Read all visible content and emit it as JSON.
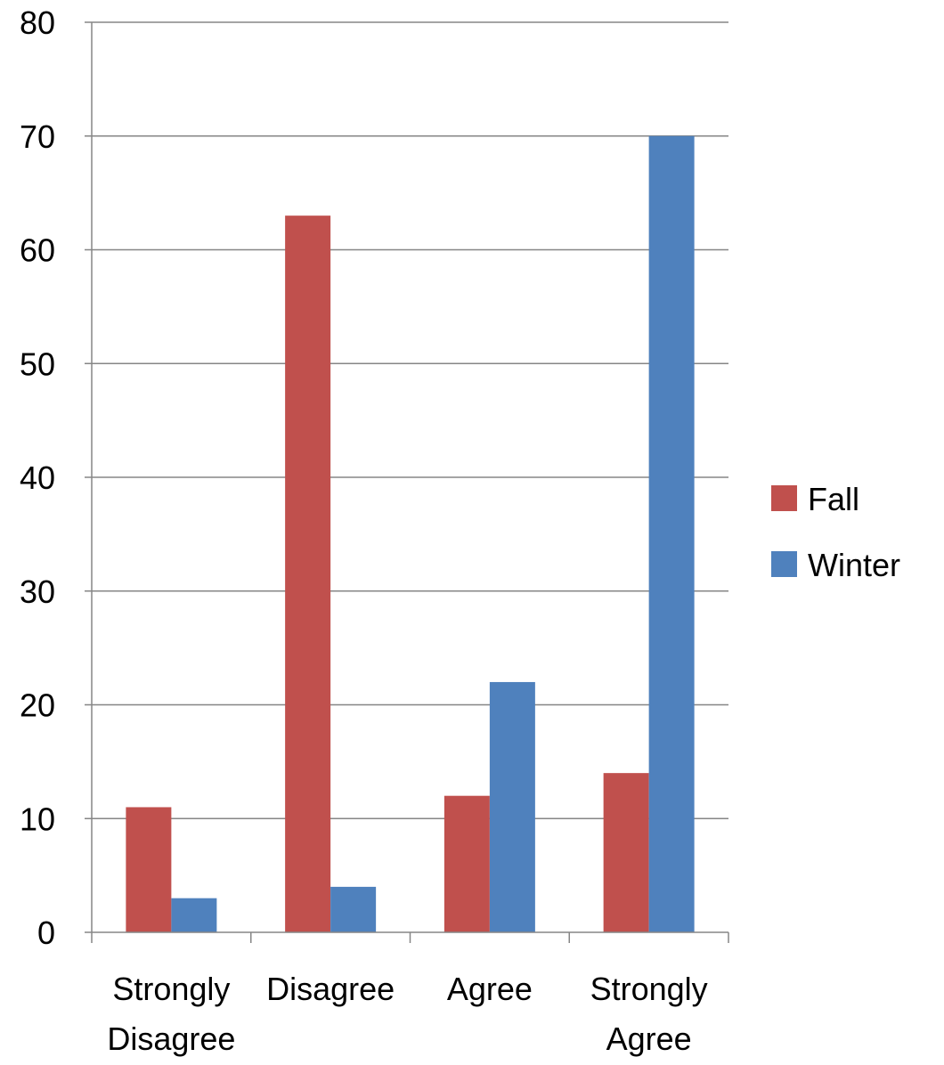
{
  "chart_data": {
    "type": "bar",
    "categories": [
      [
        "Strongly",
        "Disagree"
      ],
      [
        "Disagree"
      ],
      [
        "Agree"
      ],
      [
        "Strongly",
        "Agree"
      ]
    ],
    "series": [
      {
        "name": "Fall",
        "values": [
          11,
          63,
          12,
          14
        ],
        "color": "#C0504D"
      },
      {
        "name": "Winter",
        "values": [
          3,
          4,
          22,
          70
        ],
        "color": "#4F81BD"
      }
    ],
    "ylim": [
      0,
      80
    ],
    "yticks": [
      0,
      10,
      20,
      30,
      40,
      50,
      60,
      70,
      80
    ],
    "grid": true,
    "legend_position": "right",
    "gridline_color": "#868686",
    "axis_color": "#868686"
  }
}
